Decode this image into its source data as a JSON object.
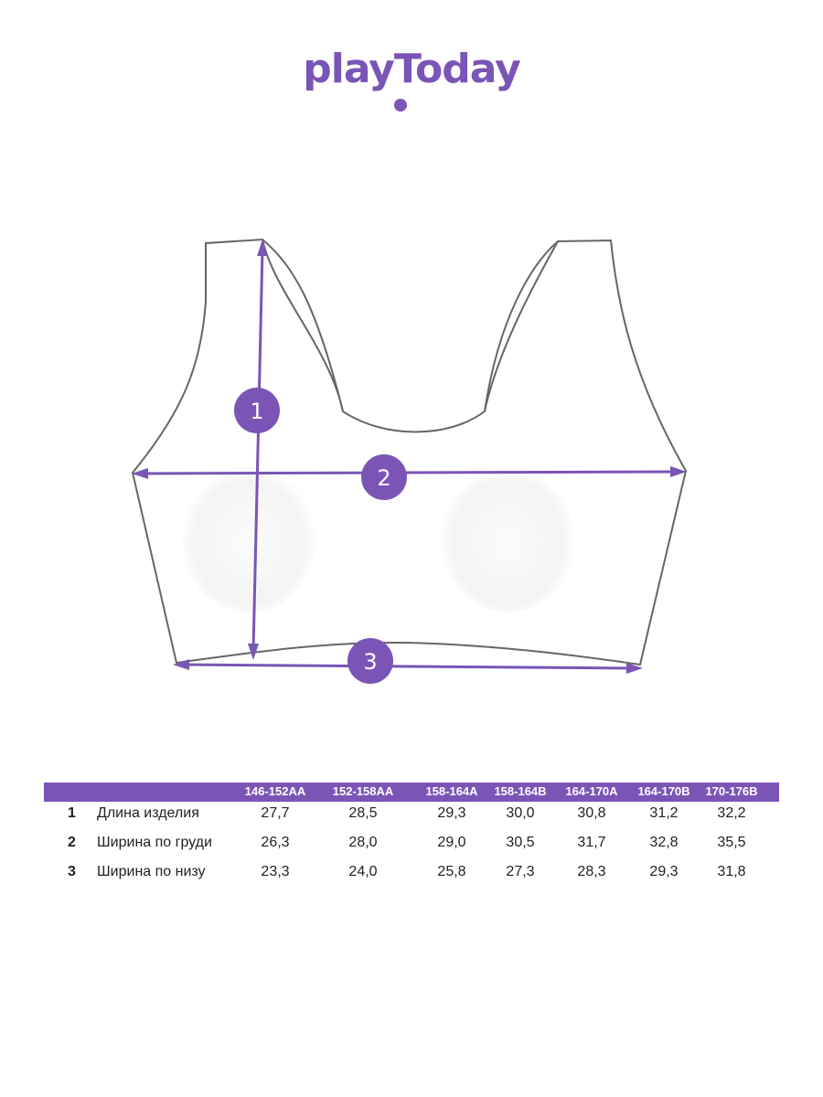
{
  "brand": {
    "logo_text": "playToday",
    "color": "#7a55b6"
  },
  "diagram": {
    "markers": [
      {
        "label": "1"
      },
      {
        "label": "2"
      },
      {
        "label": "3"
      }
    ]
  },
  "table": {
    "columns": [
      "146-152AA",
      "152-158AA",
      "158-164A",
      "158-164B",
      "164-170A",
      "164-170B",
      "170-176B"
    ],
    "rows": [
      {
        "num": "1",
        "label": "Длина изделия",
        "values": [
          "27,7",
          "28,5",
          "29,3",
          "30,0",
          "30,8",
          "31,2",
          "32,2"
        ]
      },
      {
        "num": "2",
        "label": "Ширина по груди",
        "values": [
          "26,3",
          "28,0",
          "29,0",
          "30,5",
          "31,7",
          "32,8",
          "35,5"
        ]
      },
      {
        "num": "3",
        "label": "Ширина по низу",
        "values": [
          "23,3",
          "24,0",
          "25,8",
          "27,3",
          "28,3",
          "29,3",
          "31,8"
        ]
      }
    ]
  }
}
